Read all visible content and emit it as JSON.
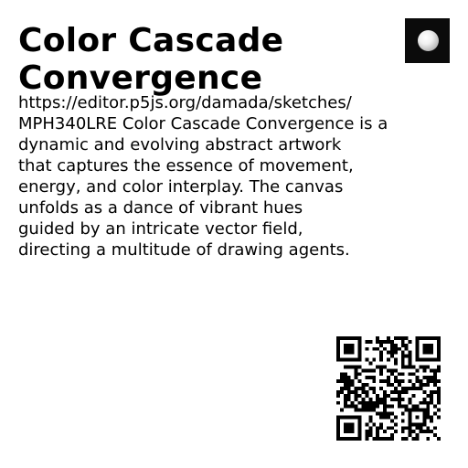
{
  "title": {
    "lines": [
      "Color Cascade",
      "Convergence"
    ]
  },
  "thumbnail": {
    "icon": "white-sphere-on-black"
  },
  "description": {
    "lines": [
      "https://editor.p5js.org/damada/sketches/",
      "MPH340LRE Color Cascade Convergence is a",
      "dynamic and evolving abstract artwork",
      "that captures the essence of movement,",
      "energy, and color interplay. The canvas",
      "unfolds as a dance of vibrant hues",
      "guided by an intricate vector field,",
      "directing a multitude of drawing agents."
    ]
  },
  "qr": {
    "icon": "qr-code-icon"
  },
  "colors": {
    "background": "#ffffff",
    "text": "#000000",
    "thumbnail_background": "#0b0b0b"
  }
}
